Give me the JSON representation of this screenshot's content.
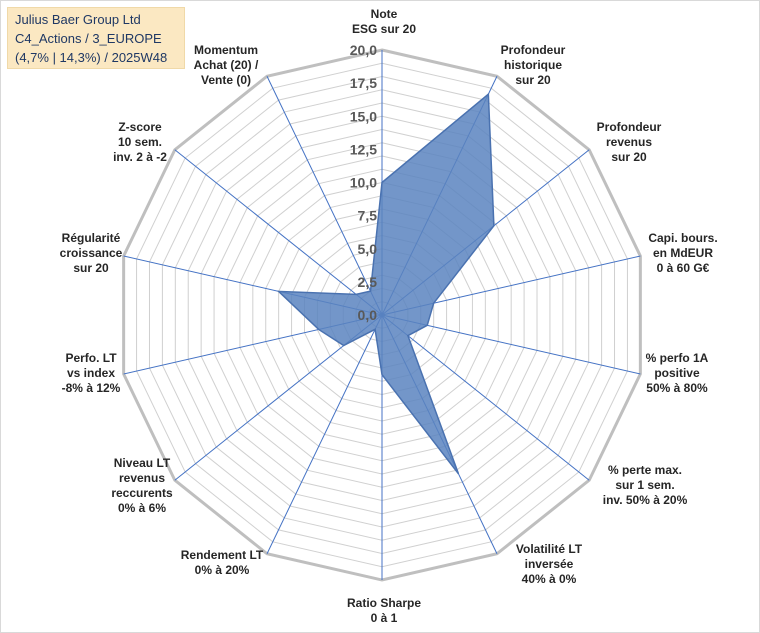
{
  "header": {
    "line1": "Julius Baer Group Ltd",
    "line2": "C4_Actions / 3_EUROPE",
    "line3": "(4,7% | 14,3%) / 2025W48"
  },
  "chart_data": {
    "type": "radar",
    "title": "Julius Baer Group Ltd",
    "rlim": [
      0,
      20
    ],
    "ticks": [
      "0,0",
      "2,5",
      "5,0",
      "7,5",
      "10,0",
      "12,5",
      "15,0",
      "17,5",
      "20,0"
    ],
    "categories": [
      [
        "Note",
        "ESG sur 20"
      ],
      [
        "Profondeur",
        "historique",
        "sur 20"
      ],
      [
        "Profondeur",
        "revenus",
        "sur 20"
      ],
      [
        "Capi. bours.",
        "en MdEUR",
        "0 à 60 G€"
      ],
      [
        "% perfo 1A",
        "positive",
        "50% à 80%"
      ],
      [
        "% perte max.",
        "sur 1 sem.",
        "inv. 50% à 20%"
      ],
      [
        "Volatilité LT",
        "inversée",
        "40% à 0%"
      ],
      [
        "Ratio Sharpe",
        "0 à 1"
      ],
      [
        "Rendement LT",
        "0% à 20%"
      ],
      [
        "Niveau LT",
        "revenus",
        "reccurents",
        "0% à 6%"
      ],
      [
        "Perfo. LT",
        "vs index",
        "-8% à 12%"
      ],
      [
        "Régularité",
        "croissance",
        "sur 20"
      ],
      [
        "Z-score",
        "10 sem.",
        "inv. 2 à -2"
      ],
      [
        "Momentum",
        "Achat (20) /",
        "Vente (0)"
      ]
    ],
    "series": [
      {
        "name": "Julius Baer Group Ltd",
        "values": [
          10.0,
          18.5,
          10.8,
          4.0,
          3.5,
          2.5,
          13.3,
          4.5,
          1.2,
          3.7,
          4.9,
          8.0,
          2.5,
          2.0
        ]
      }
    ],
    "colors": {
      "fill": "#5b84bf",
      "stroke": "#4a72b0",
      "spoke": "#4472c4",
      "grid": "#d0d0d0",
      "outer": "#bfbfbf"
    }
  }
}
